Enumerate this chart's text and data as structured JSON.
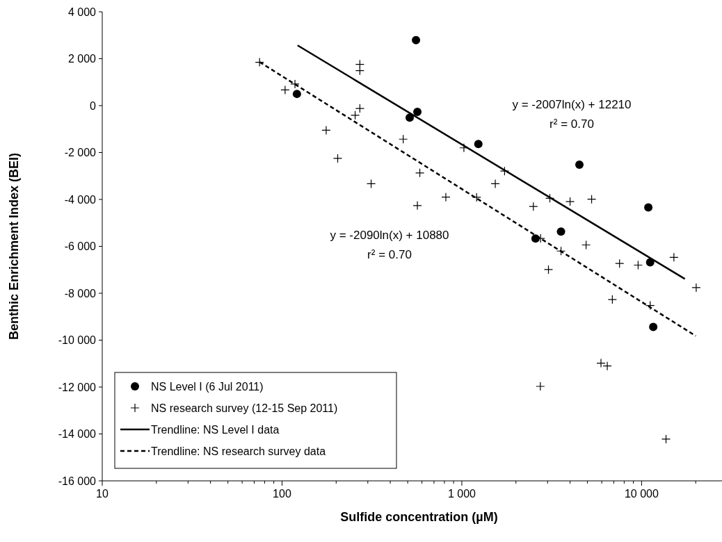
{
  "chart_data": {
    "type": "scatter",
    "xlabel": "Sulfide concentration (µM)",
    "ylabel": "Benthic Enrichment Index (BEI)",
    "log": "x",
    "xlim": [
      10,
      28000
    ],
    "xticks": [
      10,
      100,
      {
        "value": 1000,
        "label": "1 000"
      },
      {
        "value": 10000,
        "label": "10 000"
      }
    ],
    "ylim": [
      -16000,
      4000
    ],
    "yticks": [
      {
        "value": 4000,
        "label": "4 000"
      },
      {
        "value": 2000,
        "label": "2 000"
      },
      0,
      {
        "value": -2000,
        "label": "-2 000"
      },
      {
        "value": -4000,
        "label": "-4 000"
      },
      {
        "value": -6000,
        "label": "-6 000"
      },
      {
        "value": -8000,
        "label": "-8 000"
      },
      {
        "value": -10000,
        "label": "-10 000"
      },
      {
        "value": -12000,
        "label": "-12 000"
      },
      {
        "value": -14000,
        "label": "-14 000"
      },
      {
        "value": -16000,
        "label": "-16 000"
      }
    ],
    "grid": false,
    "legend": "bottom left",
    "series": [
      {
        "name": "NS Level I (6 Jul 2011)",
        "type": "scatter",
        "marker": "circle",
        "color": "#000000",
        "x": [
          121,
          556,
          566,
          513,
          1236,
          4508,
          10900,
          3562,
          2570,
          11160,
          11610
        ],
        "values": [
          500,
          2790,
          -270,
          -510,
          -1640,
          -2520,
          -4340,
          -5370,
          -5670,
          -6680,
          -9440
        ]
      },
      {
        "name": "NS research survey (12-15 Sep 2011)",
        "type": "scatter",
        "marker": "cross",
        "color": "#000000",
        "x": [
          75,
          118,
          104,
          271,
          271,
          271,
          255,
          176,
          204,
          313,
          472,
          584,
          566,
          1027,
          815,
          1209,
          1729,
          1535,
          2500,
          3088,
          4000,
          5273,
          2742,
          3562,
          4911,
          3033,
          7539,
          9563,
          15120,
          20120,
          6875,
          11160,
          5943,
          6442,
          2734,
          13670
        ],
        "values": [
          1850,
          920,
          670,
          1760,
          1490,
          -120,
          -410,
          -1050,
          -2250,
          -3330,
          -1430,
          -2870,
          -4260,
          -1800,
          -3900,
          -3910,
          -2790,
          -3330,
          -4300,
          -3950,
          -4090,
          -3990,
          -5660,
          -6200,
          -5940,
          -6990,
          -6730,
          -6800,
          -6470,
          -7760,
          -8270,
          -8520,
          -10980,
          -11100,
          -11970,
          -14220
        ]
      },
      {
        "name": "Trendline: NS Level I data",
        "type": "line",
        "line_style": "solid",
        "marker": "none",
        "color": "#000000",
        "x": [
          122,
          17400
        ],
        "values": [
          2570,
          -7390
        ]
      },
      {
        "name": "Trendline: NS research survey data",
        "type": "line",
        "line_style": "dashed",
        "marker": "none",
        "color": "#000000",
        "x": [
          75,
          20000
        ],
        "values": [
          1860,
          -9820
        ]
      }
    ],
    "annotations": [
      "y = -2007ln(x) + 12210",
      "r² = 0.70",
      "y = -2090ln(x) + 10880",
      "r² = 0.70"
    ]
  }
}
